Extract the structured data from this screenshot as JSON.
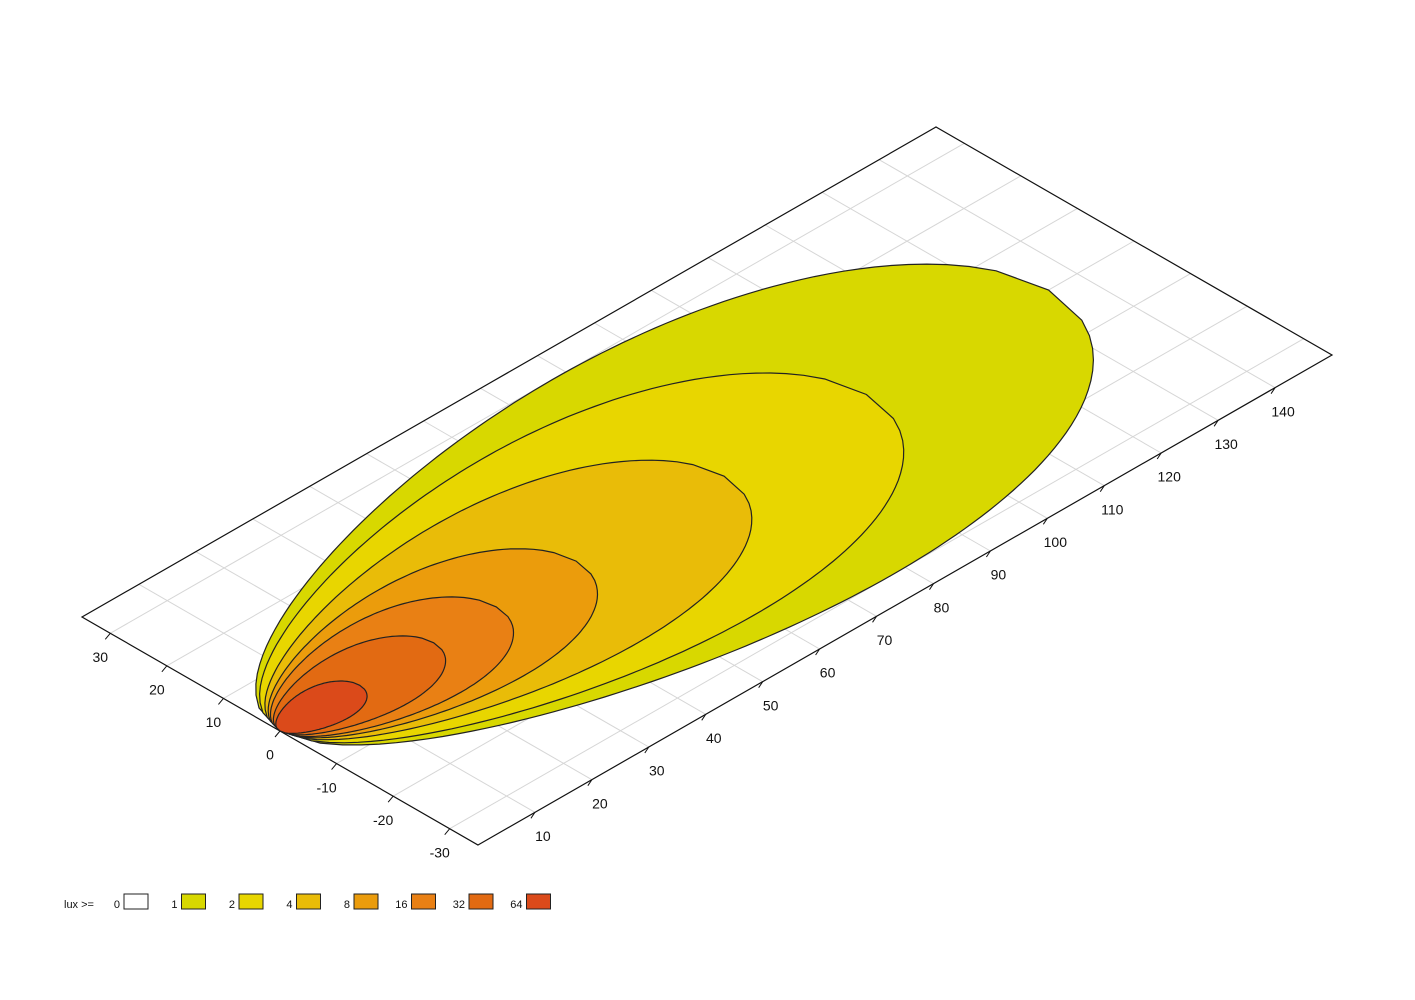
{
  "chart_data": {
    "type": "contour",
    "legend_title": "lux >=",
    "levels": [
      0,
      1,
      2,
      4,
      8,
      16,
      32,
      64
    ],
    "colors": [
      "#ffffff",
      "#d8d800",
      "#e8d600",
      "#e9bc08",
      "#eb9c0c",
      "#e98014",
      "#e26a12",
      "#db4a1a"
    ],
    "reach": [
      null,
      135,
      103,
      78,
      52,
      38,
      27,
      14
    ],
    "half_width": [
      null,
      30,
      24,
      18,
      13,
      10,
      7,
      4
    ],
    "xlim": [
      0,
      150
    ],
    "ylim": [
      -35,
      35
    ],
    "xticks": [
      10,
      20,
      30,
      40,
      50,
      60,
      70,
      80,
      90,
      100,
      110,
      120,
      130,
      140
    ],
    "yticks": [
      -30,
      -20,
      -10,
      0,
      10,
      20,
      30
    ],
    "grid": true
  }
}
